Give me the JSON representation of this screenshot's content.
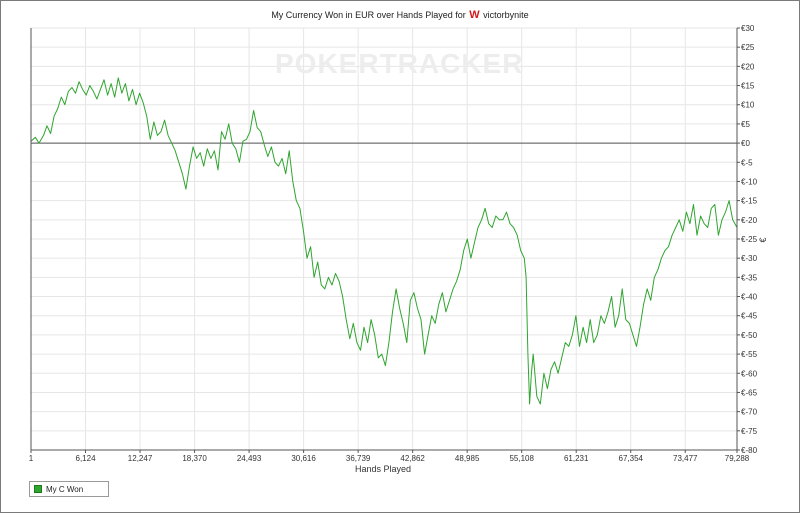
{
  "chart_data": {
    "type": "line",
    "title_parts": {
      "prefix": "My Currency Won in EUR over Hands Played for",
      "player": "victorbynite"
    },
    "watermark": "POKERTRACKER",
    "xlabel": "Hands Played",
    "ylabel": "€",
    "xlim": [
      1,
      79288
    ],
    "ylim": [
      -80,
      30
    ],
    "x_ticks": [
      {
        "value": 1,
        "label": "1"
      },
      {
        "value": 6124,
        "label": "6,124"
      },
      {
        "value": 12247,
        "label": "12,247"
      },
      {
        "value": 18370,
        "label": "18,370"
      },
      {
        "value": 24493,
        "label": "24,493"
      },
      {
        "value": 30616,
        "label": "30,616"
      },
      {
        "value": 36739,
        "label": "36,739"
      },
      {
        "value": 42862,
        "label": "42,862"
      },
      {
        "value": 48985,
        "label": "48,985"
      },
      {
        "value": 55108,
        "label": "55,108"
      },
      {
        "value": 61231,
        "label": "61,231"
      },
      {
        "value": 67354,
        "label": "67,354"
      },
      {
        "value": 73477,
        "label": "73,477"
      },
      {
        "value": 79288,
        "label": "79,288"
      }
    ],
    "y_ticks": [
      {
        "value": 30,
        "label": "€30"
      },
      {
        "value": 25,
        "label": "€25"
      },
      {
        "value": 20,
        "label": "€20"
      },
      {
        "value": 15,
        "label": "€15"
      },
      {
        "value": 10,
        "label": "€10"
      },
      {
        "value": 5,
        "label": "€5"
      },
      {
        "value": 0,
        "label": "€0"
      },
      {
        "value": -5,
        "label": "€-5"
      },
      {
        "value": -10,
        "label": "€-10"
      },
      {
        "value": -15,
        "label": "€-15"
      },
      {
        "value": -20,
        "label": "€-20"
      },
      {
        "value": -25,
        "label": "€-25"
      },
      {
        "value": -30,
        "label": "€-30"
      },
      {
        "value": -35,
        "label": "€-35"
      },
      {
        "value": -40,
        "label": "€-40"
      },
      {
        "value": -45,
        "label": "€-45"
      },
      {
        "value": -50,
        "label": "€-50"
      },
      {
        "value": -55,
        "label": "€-55"
      },
      {
        "value": -60,
        "label": "€-60"
      },
      {
        "value": -65,
        "label": "€-65"
      },
      {
        "value": -70,
        "label": "€-70"
      },
      {
        "value": -75,
        "label": "€-75"
      },
      {
        "value": -80,
        "label": "€-80"
      }
    ],
    "grid": true,
    "legend_position": "bottom-left",
    "series": [
      {
        "name": "My C Won",
        "color": "#2fa52f",
        "points": [
          [
            1,
            0.5
          ],
          [
            500,
            1.5
          ],
          [
            900,
            0
          ],
          [
            1400,
            2
          ],
          [
            1800,
            4.5
          ],
          [
            2200,
            2.5
          ],
          [
            2600,
            7
          ],
          [
            3000,
            9
          ],
          [
            3400,
            12
          ],
          [
            3800,
            10
          ],
          [
            4200,
            13.5
          ],
          [
            4600,
            14.5
          ],
          [
            5000,
            13
          ],
          [
            5400,
            16
          ],
          [
            5800,
            14
          ],
          [
            6200,
            12.5
          ],
          [
            6600,
            15
          ],
          [
            7000,
            13.5
          ],
          [
            7400,
            11.5
          ],
          [
            7800,
            14
          ],
          [
            8200,
            16.5
          ],
          [
            8600,
            12.5
          ],
          [
            9000,
            15.5
          ],
          [
            9400,
            12
          ],
          [
            9800,
            17
          ],
          [
            10200,
            13
          ],
          [
            10600,
            15.5
          ],
          [
            11000,
            11
          ],
          [
            11400,
            14
          ],
          [
            11800,
            10
          ],
          [
            12200,
            13
          ],
          [
            12600,
            10.5
          ],
          [
            13000,
            7
          ],
          [
            13400,
            1
          ],
          [
            13800,
            5.5
          ],
          [
            14200,
            2
          ],
          [
            14600,
            3
          ],
          [
            15000,
            6
          ],
          [
            15400,
            2
          ],
          [
            15800,
            0
          ],
          [
            16200,
            -2
          ],
          [
            16600,
            -5
          ],
          [
            17000,
            -8
          ],
          [
            17400,
            -12
          ],
          [
            17800,
            -6
          ],
          [
            18200,
            -1
          ],
          [
            18600,
            -4
          ],
          [
            19000,
            -2.5
          ],
          [
            19400,
            -6
          ],
          [
            19800,
            -1.5
          ],
          [
            20200,
            -4
          ],
          [
            20600,
            -2
          ],
          [
            21000,
            -7
          ],
          [
            21400,
            3
          ],
          [
            21800,
            1
          ],
          [
            22200,
            5
          ],
          [
            22600,
            0
          ],
          [
            23000,
            -1.5
          ],
          [
            23400,
            -5
          ],
          [
            23800,
            0.5
          ],
          [
            24200,
            1
          ],
          [
            24600,
            3
          ],
          [
            25000,
            8.5
          ],
          [
            25400,
            4
          ],
          [
            25800,
            3
          ],
          [
            26200,
            -0.5
          ],
          [
            26600,
            -3.5
          ],
          [
            27000,
            -1
          ],
          [
            27400,
            -5
          ],
          [
            27800,
            -6
          ],
          [
            28200,
            -4
          ],
          [
            28600,
            -8
          ],
          [
            29000,
            -2
          ],
          [
            29400,
            -10
          ],
          [
            29800,
            -15
          ],
          [
            30200,
            -17
          ],
          [
            30600,
            -23
          ],
          [
            31000,
            -30
          ],
          [
            31400,
            -27
          ],
          [
            31800,
            -35
          ],
          [
            32200,
            -31
          ],
          [
            32600,
            -37
          ],
          [
            33000,
            -38
          ],
          [
            33400,
            -35
          ],
          [
            33800,
            -37
          ],
          [
            34200,
            -34
          ],
          [
            34600,
            -36
          ],
          [
            35000,
            -40
          ],
          [
            35400,
            -46
          ],
          [
            35800,
            -51
          ],
          [
            36200,
            -47
          ],
          [
            36600,
            -52
          ],
          [
            37000,
            -54
          ],
          [
            37400,
            -48
          ],
          [
            37800,
            -52
          ],
          [
            38200,
            -46
          ],
          [
            38600,
            -50
          ],
          [
            39000,
            -56
          ],
          [
            39400,
            -55
          ],
          [
            39800,
            -58
          ],
          [
            40200,
            -52
          ],
          [
            40600,
            -44
          ],
          [
            41000,
            -38
          ],
          [
            41400,
            -43
          ],
          [
            41800,
            -47
          ],
          [
            42200,
            -52
          ],
          [
            42600,
            -41
          ],
          [
            43000,
            -39
          ],
          [
            43400,
            -43
          ],
          [
            43800,
            -46
          ],
          [
            44200,
            -55
          ],
          [
            44600,
            -50
          ],
          [
            45000,
            -45
          ],
          [
            45400,
            -47
          ],
          [
            45800,
            -42
          ],
          [
            46200,
            -39
          ],
          [
            46600,
            -44
          ],
          [
            47000,
            -41
          ],
          [
            47400,
            -38
          ],
          [
            47800,
            -36
          ],
          [
            48200,
            -33
          ],
          [
            48600,
            -28
          ],
          [
            49000,
            -25
          ],
          [
            49400,
            -30
          ],
          [
            49800,
            -26
          ],
          [
            50200,
            -22
          ],
          [
            50600,
            -20
          ],
          [
            51000,
            -17
          ],
          [
            51400,
            -21
          ],
          [
            51800,
            -22
          ],
          [
            52200,
            -19
          ],
          [
            52600,
            -20
          ],
          [
            53000,
            -20
          ],
          [
            53400,
            -18
          ],
          [
            53800,
            -21
          ],
          [
            54200,
            -22
          ],
          [
            54600,
            -24
          ],
          [
            55000,
            -28
          ],
          [
            55400,
            -30
          ],
          [
            55600,
            -35
          ],
          [
            55800,
            -55
          ],
          [
            56000,
            -68
          ],
          [
            56200,
            -60
          ],
          [
            56400,
            -55
          ],
          [
            56800,
            -66
          ],
          [
            57200,
            -68
          ],
          [
            57600,
            -60
          ],
          [
            58000,
            -64
          ],
          [
            58400,
            -59
          ],
          [
            58800,
            -57
          ],
          [
            59200,
            -60
          ],
          [
            59600,
            -56
          ],
          [
            60000,
            -52
          ],
          [
            60400,
            -53
          ],
          [
            60800,
            -50
          ],
          [
            61200,
            -45
          ],
          [
            61600,
            -53
          ],
          [
            62000,
            -48
          ],
          [
            62400,
            -52
          ],
          [
            62800,
            -46
          ],
          [
            63200,
            -52
          ],
          [
            63600,
            -50
          ],
          [
            64000,
            -45
          ],
          [
            64400,
            -47
          ],
          [
            64800,
            -44
          ],
          [
            65200,
            -40
          ],
          [
            65600,
            -48
          ],
          [
            66000,
            -45
          ],
          [
            66400,
            -38
          ],
          [
            66800,
            -46
          ],
          [
            67200,
            -47
          ],
          [
            67600,
            -50
          ],
          [
            68000,
            -53
          ],
          [
            68400,
            -48
          ],
          [
            68800,
            -42
          ],
          [
            69200,
            -38
          ],
          [
            69600,
            -41
          ],
          [
            70000,
            -35
          ],
          [
            70400,
            -33
          ],
          [
            70800,
            -30
          ],
          [
            71200,
            -28
          ],
          [
            71600,
            -27
          ],
          [
            72000,
            -24
          ],
          [
            72400,
            -22
          ],
          [
            72800,
            -20
          ],
          [
            73200,
            -23
          ],
          [
            73600,
            -18
          ],
          [
            74000,
            -21
          ],
          [
            74400,
            -16
          ],
          [
            74800,
            -24
          ],
          [
            75200,
            -19
          ],
          [
            75600,
            -21
          ],
          [
            76000,
            -22
          ],
          [
            76400,
            -17
          ],
          [
            76800,
            -16
          ],
          [
            77200,
            -24
          ],
          [
            77600,
            -20
          ],
          [
            78000,
            -18
          ],
          [
            78400,
            -15
          ],
          [
            78800,
            -20
          ],
          [
            79288,
            -22
          ]
        ]
      }
    ]
  }
}
